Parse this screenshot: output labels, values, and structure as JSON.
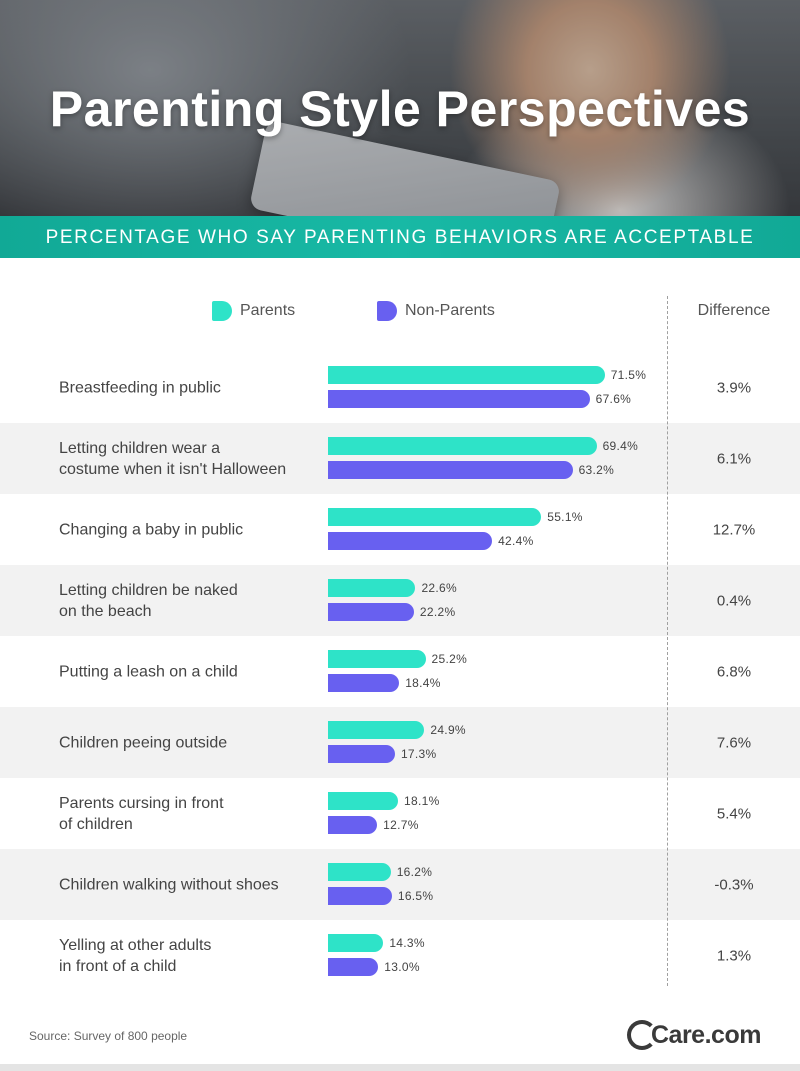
{
  "header": {
    "title": "Parenting Style Perspectives",
    "subtitle": "PERCENTAGE WHO SAY PARENTING BEHAVIORS ARE ACCEPTABLE"
  },
  "legend": {
    "parents": "Parents",
    "non_parents": "Non-Parents",
    "difference": "Difference"
  },
  "colors": {
    "parents": "#2ee3c8",
    "non_parents": "#6860f0",
    "banner": "#18b9a5"
  },
  "chart_data": {
    "type": "bar",
    "orientation": "horizontal",
    "title": "Parenting Style Perspectives",
    "subtitle": "PERCENTAGE WHO SAY PARENTING BEHAVIORS ARE ACCEPTABLE",
    "categories": [
      [
        "Breastfeeding in public"
      ],
      [
        "Letting children wear a",
        "costume when it isn't Halloween"
      ],
      [
        "Changing a baby in public"
      ],
      [
        "Letting children be naked",
        "on the beach"
      ],
      [
        "Putting a leash on a child"
      ],
      [
        "Children peeing outside"
      ],
      [
        "Parents cursing in front",
        "of children"
      ],
      [
        "Children walking without shoes"
      ],
      [
        "Yelling at other adults",
        "in front of a child"
      ]
    ],
    "series": [
      {
        "name": "Parents",
        "values": [
          71.5,
          69.4,
          55.1,
          22.6,
          25.2,
          24.9,
          18.1,
          16.2,
          14.3
        ]
      },
      {
        "name": "Non-Parents",
        "values": [
          67.6,
          63.2,
          42.4,
          22.2,
          18.4,
          17.3,
          12.7,
          16.5,
          13.0
        ]
      }
    ],
    "labels": [
      [
        "71.5%",
        "67.6%"
      ],
      [
        "69.4%",
        "63.2%"
      ],
      [
        "55.1%",
        "42.4%"
      ],
      [
        "22.6%",
        "22.2%"
      ],
      [
        "25.2%",
        "18.4%"
      ],
      [
        "24.9%",
        "17.3%"
      ],
      [
        "18.1%",
        "12.7%"
      ],
      [
        "16.2%",
        "16.5%"
      ],
      [
        "14.3%",
        "13.0%"
      ]
    ],
    "difference": [
      "3.9%",
      "6.1%",
      "12.7%",
      "0.4%",
      "6.8%",
      "7.6%",
      "5.4%",
      "-0.3%",
      "1.3%"
    ],
    "legend_position": "top",
    "grid": false
  },
  "footer": {
    "source": "Source: Survey of 800 people",
    "brand": "Care.com"
  }
}
